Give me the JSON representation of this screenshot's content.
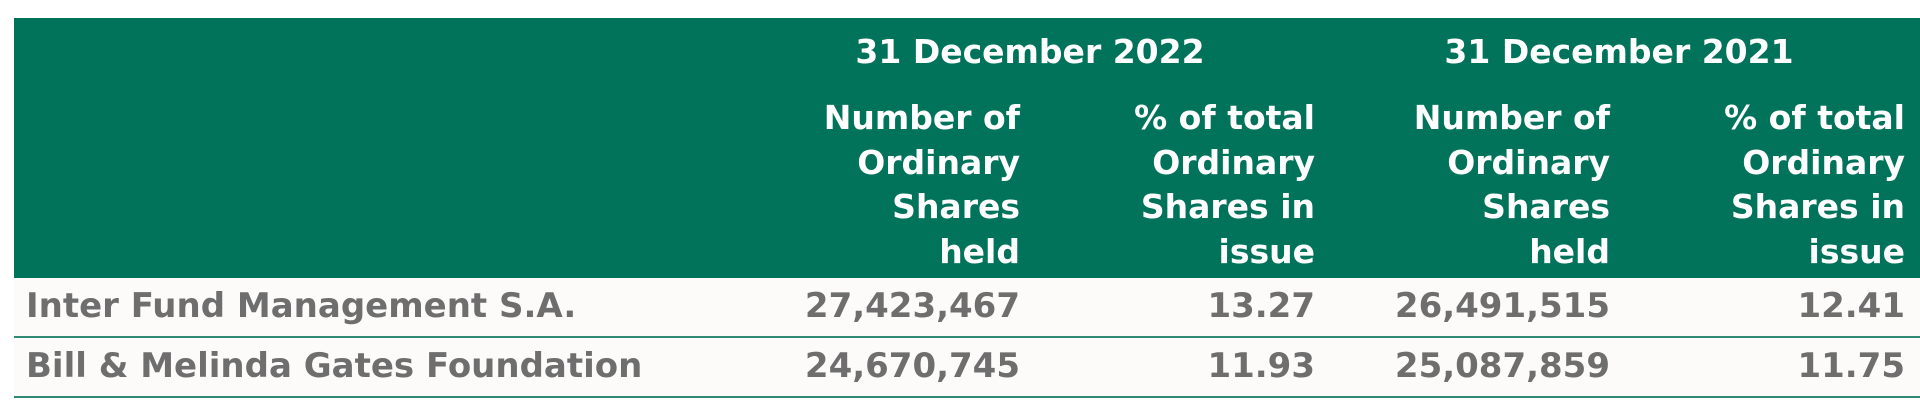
{
  "header": {
    "period_2022": "31 December 2022",
    "period_2021": "31 December 2021",
    "col_shares_lines": [
      "Number of",
      "Ordinary",
      "Shares",
      "held"
    ],
    "col_pct_lines": [
      "% of total",
      "Ordinary",
      "Shares in",
      "issue"
    ]
  },
  "rows": [
    {
      "name": "Inter Fund Management S.A.",
      "shares_2022": "27,423,467",
      "pct_2022": "13.27",
      "shares_2021": "26,491,515",
      "pct_2021": "12.41"
    },
    {
      "name": "Bill & Melinda Gates Foundation",
      "shares_2022": "24,670,745",
      "pct_2022": "11.93",
      "shares_2021": "25,087,859",
      "pct_2021": "11.75"
    }
  ],
  "colors": {
    "header_bg": "#00735a",
    "header_text": "#ffffff",
    "row_text": "#6e6e6e",
    "row_rule": "#2f8a75"
  }
}
